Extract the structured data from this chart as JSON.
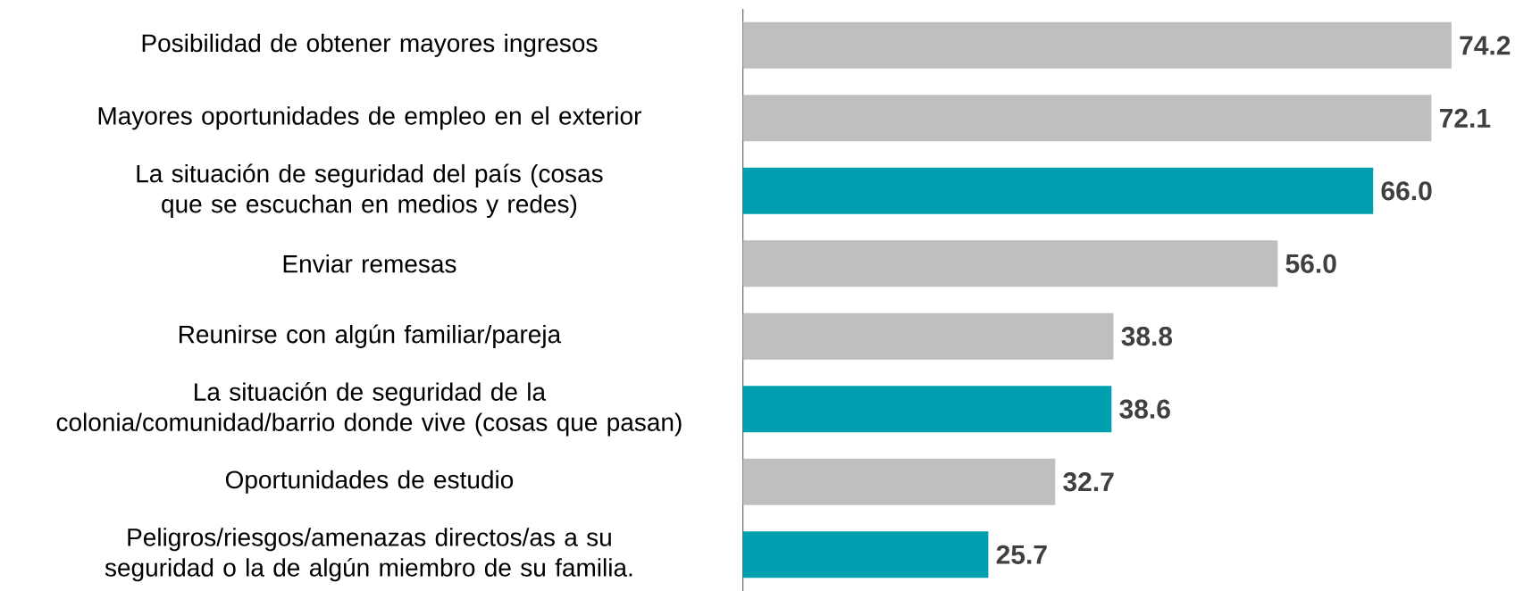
{
  "chart_data": {
    "type": "bar",
    "orientation": "horizontal",
    "categories": [
      "Posibilidad de obtener mayores ingresos",
      "Mayores oportunidades de empleo en el exterior",
      "La situación de seguridad del país (cosas que se escuchan en medios y redes)",
      "Enviar remesas",
      "Reunirse con algún familiar/pareja",
      "La situación de seguridad de la colonia/comunidad/barrio donde vive (cosas que pasan)",
      "Oportunidades de estudio",
      "Peligros/riesgos/amenazas directos/as a su seguridad o la de algún miembro de su familia."
    ],
    "values": [
      74.2,
      72.1,
      66.0,
      56.0,
      38.8,
      38.6,
      32.7,
      25.7
    ],
    "value_labels": [
      "74.2",
      "72.1",
      "66.0",
      "56.0",
      "38.8",
      "38.6",
      "32.7",
      "25.7"
    ],
    "colors": [
      "#bfbfbf",
      "#bfbfbf",
      "#00a0b0",
      "#bfbfbf",
      "#bfbfbf",
      "#00a0b0",
      "#bfbfbf",
      "#00a0b0"
    ]
  }
}
